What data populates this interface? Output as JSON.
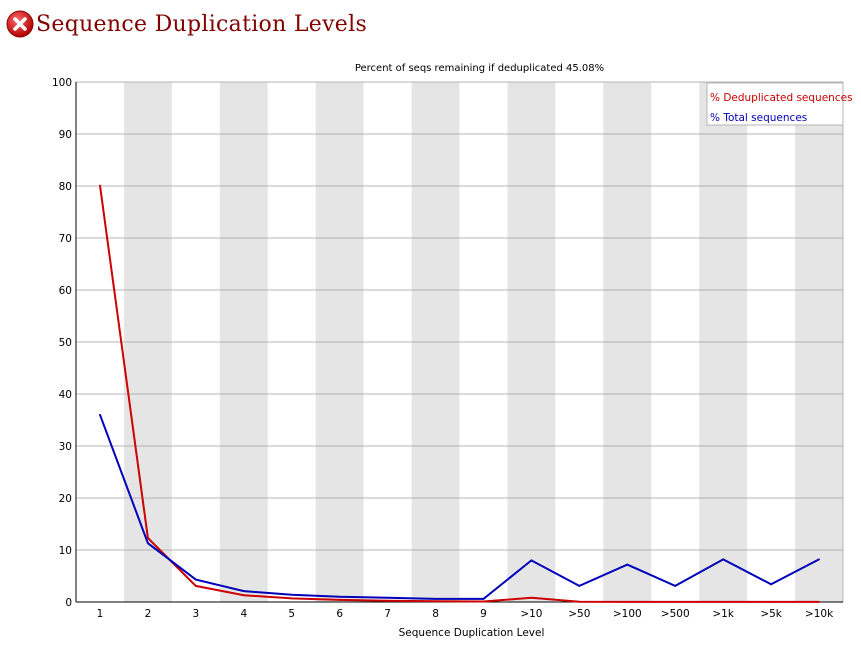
{
  "header": {
    "title": "Sequence Duplication Levels",
    "status_icon": "error-icon",
    "status_color": "#cc0000"
  },
  "chart_data": {
    "type": "line",
    "title": "Percent of seqs remaining if deduplicated 45.08%",
    "xlabel": "Sequence Duplication Level",
    "ylabel": "",
    "categories": [
      "1",
      "2",
      "3",
      "4",
      "5",
      "6",
      "7",
      "8",
      "9",
      ">10",
      ">50",
      ">100",
      ">500",
      ">1k",
      ">5k",
      ">10k"
    ],
    "ylim": [
      0,
      100
    ],
    "yticks": [
      0,
      10,
      20,
      30,
      40,
      50,
      60,
      70,
      80,
      90,
      100
    ],
    "grid": true,
    "alternating_bands": true,
    "legend_position": "top-right",
    "series": [
      {
        "name": "% Deduplicated sequences",
        "color": "#cc0000",
        "values": [
          80.1,
          12.3,
          3.1,
          1.3,
          0.7,
          0.4,
          0.25,
          0.15,
          0.1,
          0.8,
          0.05,
          0.02,
          0.02,
          0.01,
          0.01,
          0.01
        ]
      },
      {
        "name": "% Total sequences",
        "color": "#0000bb",
        "values": [
          36.0,
          11.3,
          4.3,
          2.1,
          1.4,
          1.0,
          0.8,
          0.6,
          0.6,
          8.0,
          3.1,
          7.2,
          3.1,
          8.2,
          3.4,
          8.2
        ]
      }
    ]
  }
}
